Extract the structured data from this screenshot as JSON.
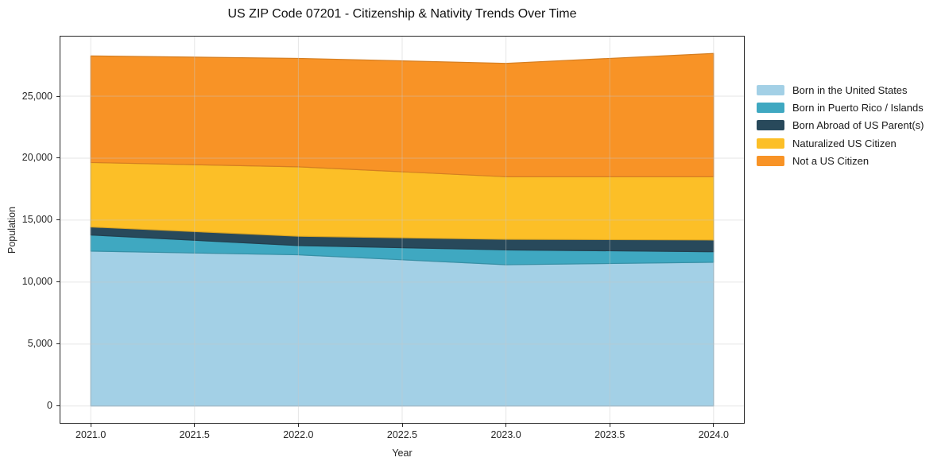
{
  "title": "US ZIP Code 07201 - Citizenship & Nativity Trends Over Time",
  "chart_data": {
    "type": "area",
    "stacked": true,
    "title": "US ZIP Code 07201 - Citizenship & Nativity Trends Over Time",
    "xlabel": "Year",
    "ylabel": "Population",
    "x": [
      2021,
      2022,
      2023,
      2024
    ],
    "series": [
      {
        "name": "Born in the United States",
        "color": "#A3D0E6",
        "values": [
          12500,
          12200,
          11400,
          11600
        ]
      },
      {
        "name": "Born in Puerto Rico / Islands",
        "color": "#3FA8C1",
        "values": [
          1300,
          750,
          1200,
          850
        ]
      },
      {
        "name": "Born Abroad of US Parent(s)",
        "color": "#28495B",
        "values": [
          650,
          750,
          850,
          950
        ]
      },
      {
        "name": "Naturalized US Citizen",
        "color": "#FCBF27",
        "values": [
          5200,
          5600,
          5050,
          5100
        ]
      },
      {
        "name": "Not a US Citizen",
        "color": "#F89326",
        "values": [
          8600,
          8750,
          9150,
          9950
        ]
      }
    ],
    "stack_totals": [
      28250,
      28050,
      27650,
      28450
    ],
    "x_ticks": [
      2021.0,
      2021.5,
      2022.0,
      2022.5,
      2023.0,
      2023.5,
      2024.0
    ],
    "x_tick_labels": [
      "2021.0",
      "2021.5",
      "2022.0",
      "2022.5",
      "2023.0",
      "2023.5",
      "2024.0"
    ],
    "y_ticks": [
      0,
      5000,
      10000,
      15000,
      20000,
      25000
    ],
    "y_tick_labels": [
      "0",
      "5,000",
      "10,000",
      "15,000",
      "20,000",
      "25,000"
    ],
    "xlim": [
      2020.85,
      2024.15
    ],
    "ylim": [
      -1425,
      29875
    ],
    "grid": true,
    "grid_color": "#c8c8c8",
    "spine_color": "#262626",
    "legend_position": "right"
  }
}
